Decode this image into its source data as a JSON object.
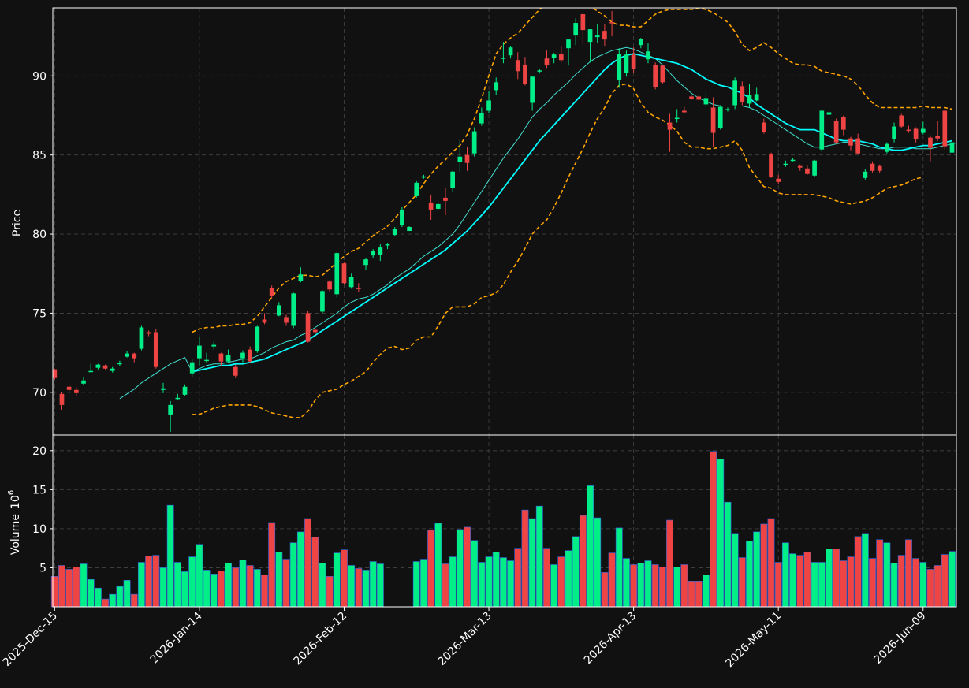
{
  "colors": {
    "background": "#111111",
    "up": "#00ee88",
    "down": "#ee4444",
    "volume_edge": "#3366dd",
    "ma_fast": "#40e0d0",
    "ma_slow": "#00ffff",
    "bollinger": "#ffa500",
    "grid": "#444444",
    "axis": "#ffffff"
  },
  "chart_data": {
    "type": "candlestick",
    "grid": true,
    "x_tick_labels": [
      "2025-Dec-15",
      "2026-Jan-14",
      "2026-Feb-12",
      "2026-Mar-13",
      "2026-Apr-13",
      "2026-May-11",
      "2026-Jun-09"
    ],
    "x_tick_index": [
      0,
      20,
      40,
      60,
      80,
      100,
      120
    ],
    "price_panel": {
      "ylabel": "Price",
      "yticks": [
        70,
        75,
        80,
        85,
        90
      ],
      "ylim": [
        67.3,
        94.3
      ]
    },
    "volume_panel": {
      "ylabel": "Volume",
      "ylabel_unit": "10",
      "ylabel_exponent": "6",
      "yticks": [
        5,
        10,
        15,
        20
      ],
      "ylim": [
        0,
        22
      ]
    },
    "indicators": [
      "ma_fast",
      "ma_slow",
      "bollinger_upper",
      "bollinger_lower"
    ],
    "ohlc_compact": "71.45,70.9,71.5,70.8;69.9,69.2,70.0,68.9;70.35,70.15,70.5,70.0;70.15,69.95,70.3,69.8;70.55,70.75,70.95,70.45;71.35,71.35,71.8,71.25;71.55,71.75,71.8,71.45;71.7,71.5,71.75,71.45;71.35,71.5,71.6,71.25;71.85,71.85,72.0,71.65;72.25,72.45,72.6,72.2;72.45,72.15,72.5,71.9;72.75,74.1,74.2,72.65;73.8,73.7,73.9,73.55;73.8,71.6,74.0,71.5;70.15,70.25,70.6,69.95;68.6,69.2,69.45,67.5;69.6,69.65,69.9,69.55;69.85,70.35,70.5,69.8;71.2,71.9,72.1,70.95;72.15,72.95,73.5,71.7;72.05,72.05,72.5,71.85;72.9,73.0,73.2,72.7;72.45,71.95,72.5,71.7;71.95,72.35,72.7,71.9;71.6,71.05,71.75,70.9;72.15,72.5,72.65,71.9;72.7,71.95,72.9,71.85;72.6,74.15,74.2,72.5;74.6,74.4,75.0,74.3;76.6,76.1,76.75,75.95;74.85,75.5,75.7,74.8;74.75,74.4,74.9,74.2;74.2,76.25,76.3,74.05;77.05,77.45,77.9,76.95;75.0,73.2,75.15,73.15;73.95,73.8,74.05,73.6;75.1,76.4,76.45,75.0;77.0,76.5,77.1,76.35;76.2,78.8,78.85,76.0;78.15,76.9,78.2,76.8;76.65,77.3,77.5,76.55;76.6,76.55,76.9,76.35;78.05,78.4,78.5,77.75;78.65,78.95,79.05,78.5;78.7,79.15,79.35,78.3;79.3,79.35,79.45,79.05;79.95,80.35,80.45,79.85;80.55,81.55,81.7,80.45;80.2,80.45,80.5,80.2;82.4,83.25,83.35,82.3;83.65,83.65,83.75,83.5;82.0,81.55,82.5,80.9;81.6,81.9,82.0,81.5;82.3,82.1,82.9,81.2;82.9,83.95,84.0,82.7;84.55,84.9,85.95,83.95;85.0,84.5,85.5,84.0;85.1,86.5,86.75,84.9;87.0,87.65,88.0,86.85;87.8,88.45,89.05,87.65;89.1,89.6,89.9,88.8;91.15,91.15,92.15,90.8;91.3,91.8,91.9,91.1;91.0,90.3,91.5,89.8;90.7,89.5,91.2,89.4;88.3,89.95,90.0,87.8;90.35,90.35,90.45,90.15;91.1,90.7,91.6,90.5;91.15,91.35,91.45,90.8;91.4,91.0,91.85,90.85;91.75,92.3,92.3,90.65;92.55,93.35,93.65,91.95;93.9,92.9,94.05,92.0;92.15,92.95,92.95,90.85;92.45,92.55,93.3,92.1;92.85,92.3,93.25,91.9;93.4,93.35,94.1,92.5;89.75,91.4,91.75,89.25;90.2,91.35,91.6,89.95;91.35,90.45,91.8,90.2;91.95,92.35,92.4,91.75;91.05,91.55,92.05,90.8;90.7,89.3,90.85,89.15;90.65,89.6,90.7,89.5;87.05,86.6,87.6,85.2;87.35,87.35,87.9,87.05;87.8,87.7,88.05,87.65;88.7,88.55,88.75,88.5;88.7,88.5,88.8,88.45;88.2,88.6,88.95,88.05;88.0,86.4,88.65,85.5;86.7,88.05,88.15,86.6;87.85,87.9,88.0,87.75;88.15,89.7,89.9,87.9;89.35,88.35,89.65,88.15;88.25,88.8,89.5,88.0;88.45,88.85,89.25,88.4;87.05,86.45,87.3,86.35;85.05,83.6,85.15,83.55;83.5,83.3,83.75,83.15;84.45,84.45,84.65,84.25;84.65,84.7,84.8,84.6;84.3,84.2,84.4,84.0;84.15,83.8,84.35,83.75;83.7,84.65,84.7,83.65;85.35,87.8,87.85,85.2;87.55,87.7,87.8,87.5;87.15,85.8,87.3,85.7;87.4,86.6,87.5,86.25;86.05,85.6,86.15,85.3;86.05,85.1,86.35,85.05;83.55,83.95,84.1,83.45;84.45,84.0,84.6,83.9;84.3,84.0,84.4,83.85;85.2,85.7,85.8,85.1;86.0,86.8,87.05,85.8;87.5,86.8,87.6,86.7;86.6,86.55,86.85,86.4;86.65,86.0,86.75,85.8;86.4,86.65,87.1,86.3;86.1,85.45,86.25,84.6;86.2,86.05,87.15,85.9;87.8,85.55,87.9,85.35;85.15,85.8,86.15,85.0",
    "volume_compact": "3.9,5.3,4.8,5.1,5.5,3.5,2.4,1.0,1.6,2.6,3.4,1.6,5.7,6.5,6.6,5.0,13.0,5.7,4.5,6.4,8.0,4.7,4.2,4.6,5.6,5.0,6.0,5.3,4.8,4.1,10.8,7.0,6.1,8.2,9.6,11.3,8.9,5.6,3.9,6.9,7.3,5.3,4.9,4.7,5.8,5.5,0.0,0.0,0.0,0.0,5.8,6.1,9.8,10.7,5.5,6.4,9.9,10.2,8.5,5.7,6.4,7.0,6.3,5.9,7.5,12.4,11.3,12.9,7.5,5.4,6.4,7.2,9.0,11.7,15.5,11.4,4.4,6.9,10.1,6.2,5.4,5.6,5.9,5.4,5.1,11.1,5.1,5.4,3.3,3.3,4.1,19.9,18.9,13.4,9.4,6.3,8.4,9.6,10.6,11.3,5.7,8.2,6.8,6.6,7.0,5.7,5.7,7.4,7.4,5.9,6.4,9.0,9.4,6.2,8.6,8.2,5.6,6.6,8.6,6.2,5.7,4.8,5.3,6.7,7.1",
    "ma_fast_compact": "null,null,null,null,null,null,null,null,null,69.6,69.9,70.2,70.6,70.9,71.2,71.5,71.8,72.0,72.2,71.3,71.5,71.7,71.8,71.8,71.9,72.0,72.1,72.1,72.3,72.5,72.8,73.0,73.2,73.3,73.6,73.8,74.1,74.4,74.7,75.0,75.4,75.7,75.9,76.0,76.2,76.5,76.8,77.2,77.5,77.8,78.2,78.6,78.9,79.2,79.6,80.0,80.6,81.3,82.0,82.7,83.4,84.1,84.8,85.4,86.0,86.7,87.4,87.9,88.3,88.8,89.2,89.6,90.1,90.5,90.9,91.2,91.4,91.6,91.7,91.8,91.7,91.5,91.3,91.1,90.7,90.2,89.7,89.3,88.9,88.6,88.4,88.2,88.1,88.1,88.1,88.1,88.0,87.8,87.5,87.2,86.9,86.6,86.3,86.0,85.7,85.5,85.5,85.6,85.7,85.8,85.8,85.7,85.6,85.5,85.4,85.4,85.5,85.5,85.5,85.4,85.4,85.4,85.5,85.6,85.7,85.8,85.9",
    "ma_slow_compact": "null,null,null,null,null,null,null,null,null,null,null,null,null,null,null,null,null,null,null,71.3,71.4,71.5,71.6,71.7,71.7,71.8,71.8,71.9,72.0,72.1,72.3,72.5,72.7,72.9,73.1,73.3,73.6,73.9,74.2,74.5,74.8,75.1,75.4,75.7,76.0,76.3,76.6,76.9,77.2,77.5,77.8,78.1,78.4,78.7,79.0,79.4,79.8,80.2,80.7,81.2,81.7,82.3,82.9,83.5,84.1,84.7,85.3,85.9,86.4,86.9,87.4,87.9,88.4,88.9,89.4,89.9,90.4,90.8,91.1,91.3,91.4,91.3,91.2,91.1,91.0,90.9,90.8,90.6,90.4,90.1,89.8,89.6,89.4,89.3,89.1,88.9,88.6,88.2,87.9,87.6,87.3,87.0,86.8,86.6,86.6,86.6,86.4,86.2,86.0,85.9,85.9,85.9,85.8,85.7,85.5,85.4,85.3,85.3,85.4,85.5,85.6,85.6,85.7,85.8,85.9",
    "bb_upper_compact": "null,null,null,null,null,null,null,null,null,null,null,null,null,null,null,null,null,null,null,73.8,74.0,74.1,74.1,74.2,74.2,74.3,74.3,74.4,74.8,75.4,76.0,76.6,77.0,77.2,77.4,77.4,77.3,77.4,77.8,78.2,78.6,78.9,79.1,79.5,79.9,80.2,80.5,81.0,81.5,82.0,82.5,83.2,83.8,84.3,84.7,85.2,85.6,86.3,87.3,88.6,90.0,91.4,92.0,92.4,92.7,93.2,93.7,94.2,94.6,95.0,95.2,95.2,95.0,94.7,94.4,94.1,93.8,93.4,93.2,93.2,93.1,93.1,93.5,93.9,94.1,94.2,94.2,94.2,94.2,94.3,94.2,94.0,93.7,93.4,92.8,92.0,91.6,91.8,92.1,91.8,91.4,91.1,90.8,90.7,90.7,90.6,90.3,90.2,90.1,90.0,89.8,89.4,88.8,88.3,88.0,88.0,88.0,88.0,88.0,88.0,88.1,88.0,88.0,88.0,87.9",
    "bb_lower_compact": "null,null,null,null,null,null,null,null,null,null,null,null,null,null,null,null,null,null,null,68.6,68.6,68.8,69.0,69.1,69.2,69.2,69.2,69.2,69.1,68.9,68.7,68.6,68.5,68.4,68.4,68.8,69.5,70.0,70.1,70.2,70.5,70.7,71.0,71.3,71.9,72.4,72.8,72.9,72.7,72.8,73.3,73.5,73.5,74.2,75.0,75.4,75.4,75.4,75.6,76.0,76.1,76.3,76.8,77.6,78.3,79.1,80.0,80.5,80.9,81.7,82.6,83.6,84.5,85.4,86.4,87.3,88.0,88.9,89.4,89.5,89.2,88.3,87.7,87.4,87.2,86.9,86.5,85.8,85.5,85.5,85.4,85.4,85.5,85.6,85.9,85.3,84.2,83.6,83.0,82.9,82.6,82.5,82.5,82.5,82.5,82.5,82.4,82.3,82.1,82.0,81.9,82.0,82.1,82.3,82.6,82.9,83.0,83.1,83.3,83.5,83.6"
  }
}
